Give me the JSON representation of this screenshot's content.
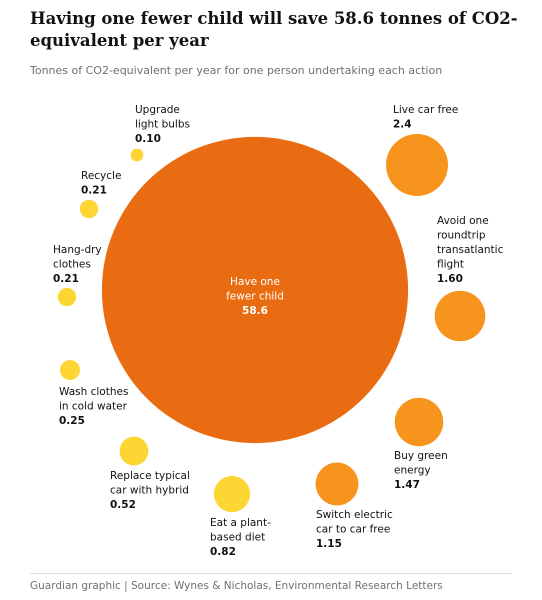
{
  "chart_data": {
    "type": "bubble",
    "title": "Having one fewer child will save 58.6 tonnes of CO2-equivalent per year",
    "subtitle": "Tonnes of CO2-equivalent per year for one person undertaking each action",
    "source": "Guardian graphic | Source: Wynes & Nicholas, Environmental Research Letters",
    "categories": [
      [
        "Have one",
        "fewer child"
      ],
      [
        "Upgrade",
        "light bulbs"
      ],
      [
        "Recycle"
      ],
      [
        "Hang-dry",
        "clothes"
      ],
      [
        "Wash clothes",
        "in cold water"
      ],
      [
        "Replace typical",
        "car with hybrid"
      ],
      [
        "Eat a plant-",
        "based diet"
      ],
      [
        "Switch electric",
        "car to car free"
      ],
      [
        "Buy green",
        "energy"
      ],
      [
        "Avoid one",
        "roundtrip",
        "transatlantic",
        "flight"
      ],
      [
        "Live car free"
      ]
    ],
    "values": [
      58.6,
      0.1,
      0.21,
      0.21,
      0.25,
      0.52,
      0.82,
      1.15,
      1.47,
      1.6,
      2.4
    ],
    "value_labels": [
      "58.6",
      "0.10",
      "0.21",
      "0.21",
      "0.25",
      "0.52",
      "0.82",
      "1.15",
      "1.47",
      "1.60",
      "2.4"
    ],
    "colors": [
      "#ea6c12",
      "#fdd633",
      "#fdd633",
      "#fdd633",
      "#fdd633",
      "#fdd633",
      "#fdd633",
      "#f7941d",
      "#f7941d",
      "#f7941d",
      "#f7941d"
    ]
  }
}
